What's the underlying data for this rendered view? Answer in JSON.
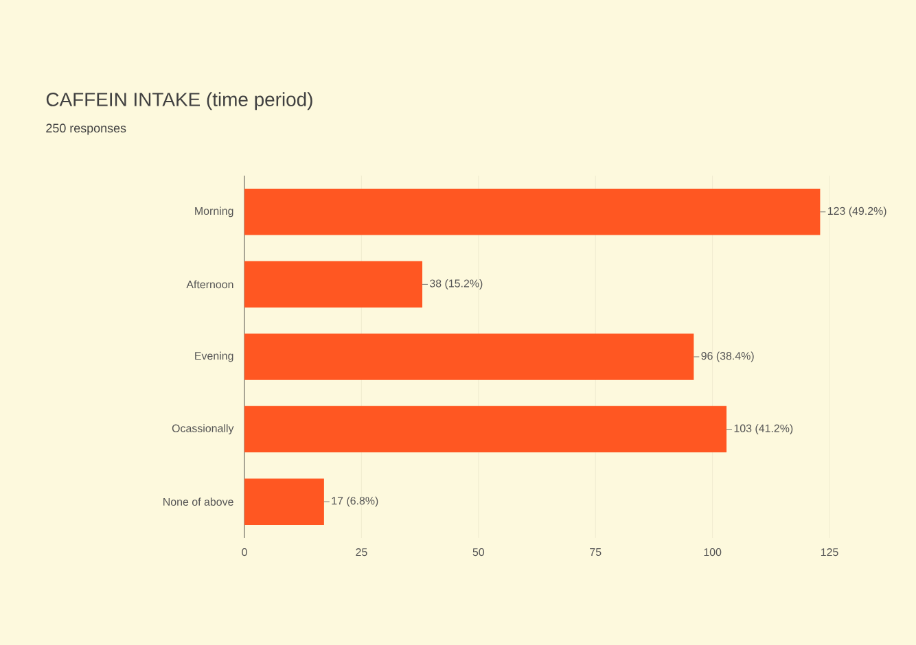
{
  "chart_data": {
    "type": "bar",
    "orientation": "horizontal",
    "title": "CAFFEIN INTAKE (time period)",
    "subtitle": "250 responses",
    "categories": [
      "Morning",
      "Afternoon",
      "Evening",
      "Ocassionally",
      "None of above"
    ],
    "values": [
      123,
      38,
      96,
      103,
      17
    ],
    "color": "#ff5722",
    "value_labels": [
      "123 (49.2%)",
      "38 (15.2%)",
      "96 (38.4%)",
      "103 (41.2%)",
      "17 (6.8%)"
    ],
    "xlim": [
      0,
      125
    ],
    "xticks": [
      0,
      25,
      50,
      75,
      100,
      125
    ],
    "grid": "x"
  }
}
